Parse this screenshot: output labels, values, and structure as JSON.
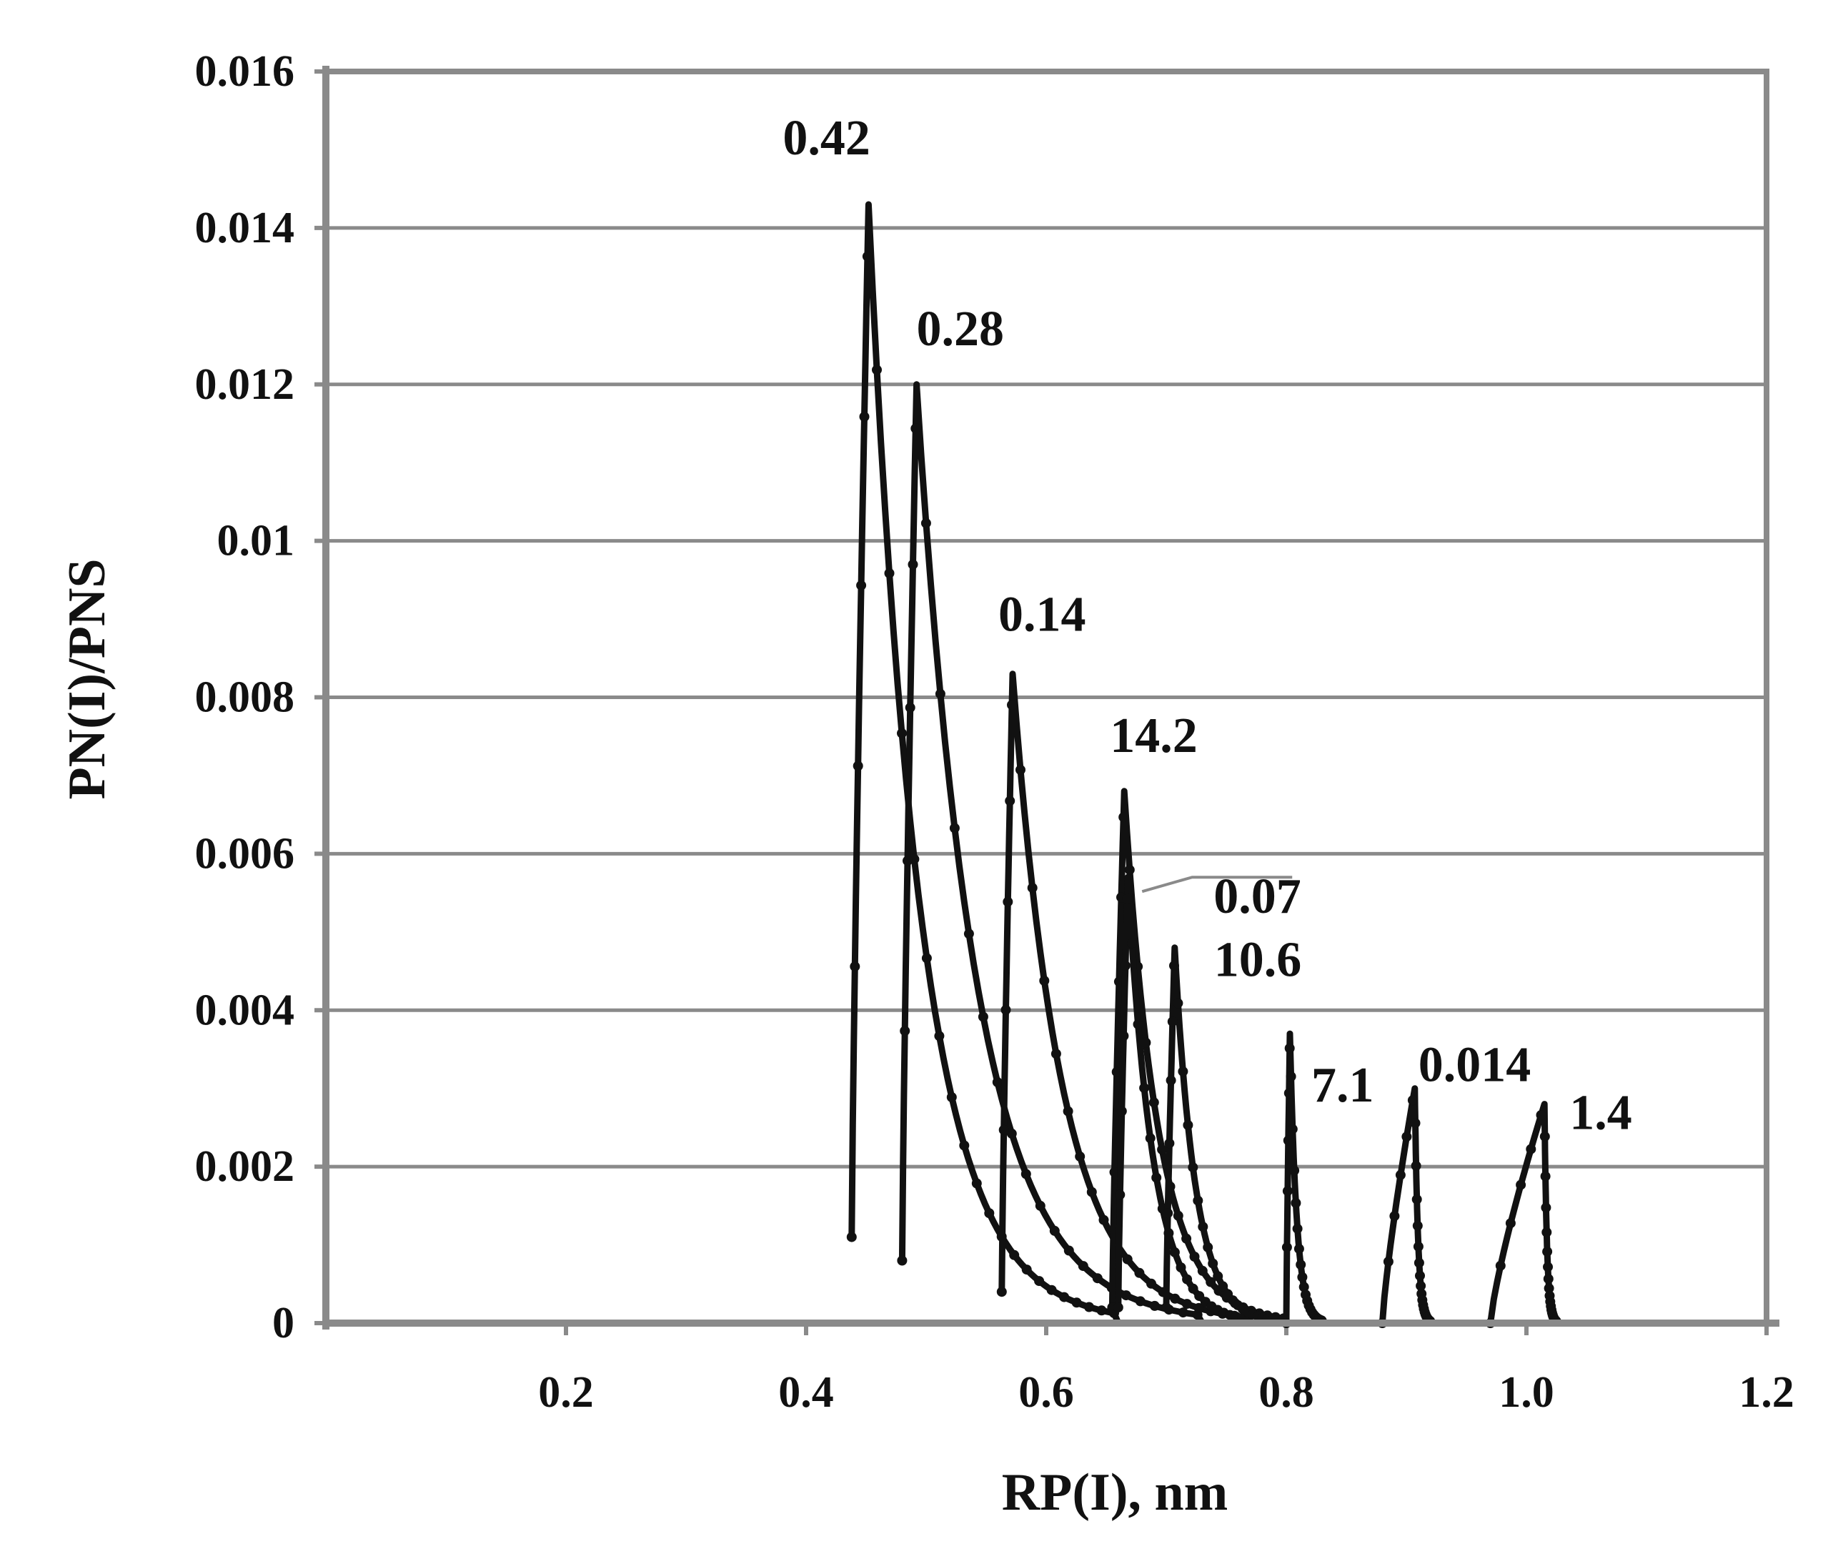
{
  "chart_data": {
    "type": "line",
    "title": "",
    "xlabel": "RP(I), nm",
    "ylabel": "PN(I)/PNS",
    "xlim": [
      0,
      1.2
    ],
    "ylim": [
      0,
      0.016
    ],
    "x_ticks": [
      "0.2",
      "0.4",
      "0.6",
      "0.8",
      "1.0",
      "1.2"
    ],
    "y_ticks": [
      "0",
      "0.002",
      "0.004",
      "0.006",
      "0.008",
      "0.01",
      "0.012",
      "0.014",
      "0.016"
    ],
    "grid": "horizontal",
    "legend": "none",
    "series": [
      {
        "name": "0.42",
        "start": 0.438,
        "start_y": 0.0011,
        "peak_x": 0.452,
        "peak_y": 0.0143,
        "end_x": 0.66
      },
      {
        "name": "0.28",
        "start": 0.48,
        "start_y": 0.0008,
        "peak_x": 0.492,
        "peak_y": 0.012,
        "end_x": 0.73
      },
      {
        "name": "0.14",
        "start": 0.563,
        "start_y": 0.0004,
        "peak_x": 0.572,
        "peak_y": 0.0083,
        "end_x": 0.77
      },
      {
        "name": "14.2",
        "start": 0.655,
        "start_y": 0.0002,
        "peak_x": 0.665,
        "peak_y": 0.0068,
        "end_x": 0.8
      },
      {
        "name": "0.07",
        "start": 0.66,
        "start_y": 0.0002,
        "peak_x": 0.668,
        "peak_y": 0.0057,
        "end_x": 0.77
      },
      {
        "name": "10.6",
        "start": 0.7,
        "start_y": 0.0002,
        "peak_x": 0.707,
        "peak_y": 0.0048,
        "end_x": 0.79
      },
      {
        "name": "7.1",
        "start": 0.8,
        "start_y": 0.0,
        "peak_x": 0.803,
        "peak_y": 0.0037,
        "end_x": 0.83
      },
      {
        "name": "0.014",
        "start": 0.88,
        "start_y": 0.0,
        "peak_x": 0.907,
        "peak_y": 0.003,
        "end_x": 0.92
      },
      {
        "name": "1.4",
        "start": 0.97,
        "start_y": 0.0,
        "peak_x": 1.015,
        "peak_y": 0.0028,
        "end_x": 1.025
      }
    ],
    "annotations": [
      "0.42",
      "0.28",
      "0.14",
      "14.2",
      "0.07",
      "10.6",
      "7.1",
      "0.014",
      "1.4"
    ]
  }
}
